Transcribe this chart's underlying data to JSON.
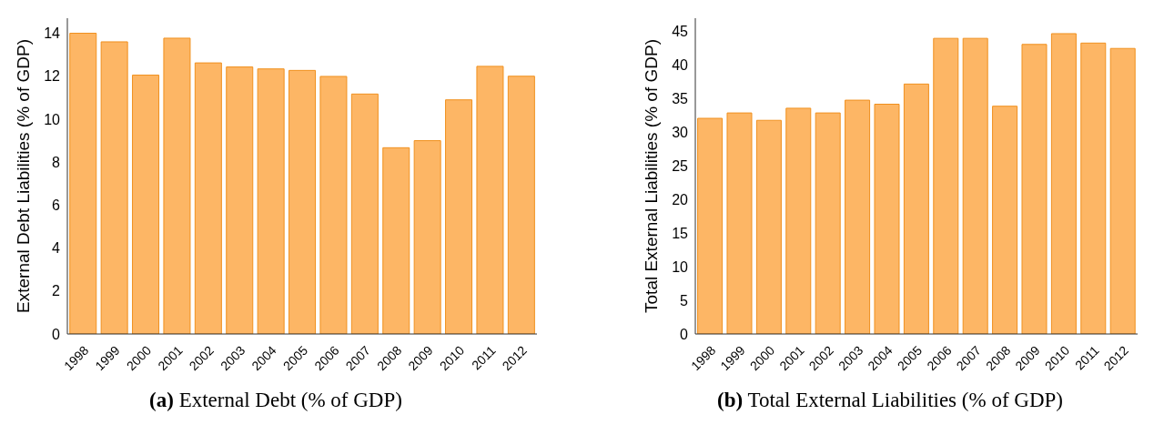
{
  "chart_data": [
    {
      "type": "bar",
      "title": "(a) External Debt (% of GDP)",
      "ylabel": "External Debt Liabilities (% of GDP)",
      "categories": [
        "1998",
        "1999",
        "2000",
        "2001",
        "2002",
        "2003",
        "2004",
        "2005",
        "2006",
        "2007",
        "2008",
        "2009",
        "2010",
        "2011",
        "2012"
      ],
      "values": [
        14.0,
        13.6,
        12.05,
        13.77,
        12.62,
        12.43,
        12.34,
        12.27,
        11.99,
        11.17,
        8.67,
        9.0,
        10.9,
        12.46,
        12.0
      ],
      "color": "#fdb665",
      "ylim": [
        0,
        14.7
      ],
      "yticks": [
        0,
        2,
        4,
        6,
        8,
        10,
        12,
        14
      ],
      "grid": false,
      "legend": false
    },
    {
      "type": "bar",
      "title": "(b) Total External Liabilities (% of GDP)",
      "ylabel": "Total External Liabilities (% of GDP)",
      "categories": [
        "1998",
        "1999",
        "2000",
        "2001",
        "2002",
        "2003",
        "2004",
        "2005",
        "2006",
        "2007",
        "2008",
        "2009",
        "2010",
        "2011",
        "2012"
      ],
      "values": [
        32.1,
        32.9,
        31.8,
        33.6,
        32.9,
        34.8,
        34.2,
        37.2,
        44.0,
        44.0,
        33.9,
        43.1,
        44.7,
        43.3,
        42.5
      ],
      "color": "#fdb665",
      "ylim": [
        0,
        47
      ],
      "yticks": [
        0,
        5,
        10,
        15,
        20,
        25,
        30,
        35,
        40,
        45
      ],
      "grid": false,
      "legend": false
    }
  ]
}
